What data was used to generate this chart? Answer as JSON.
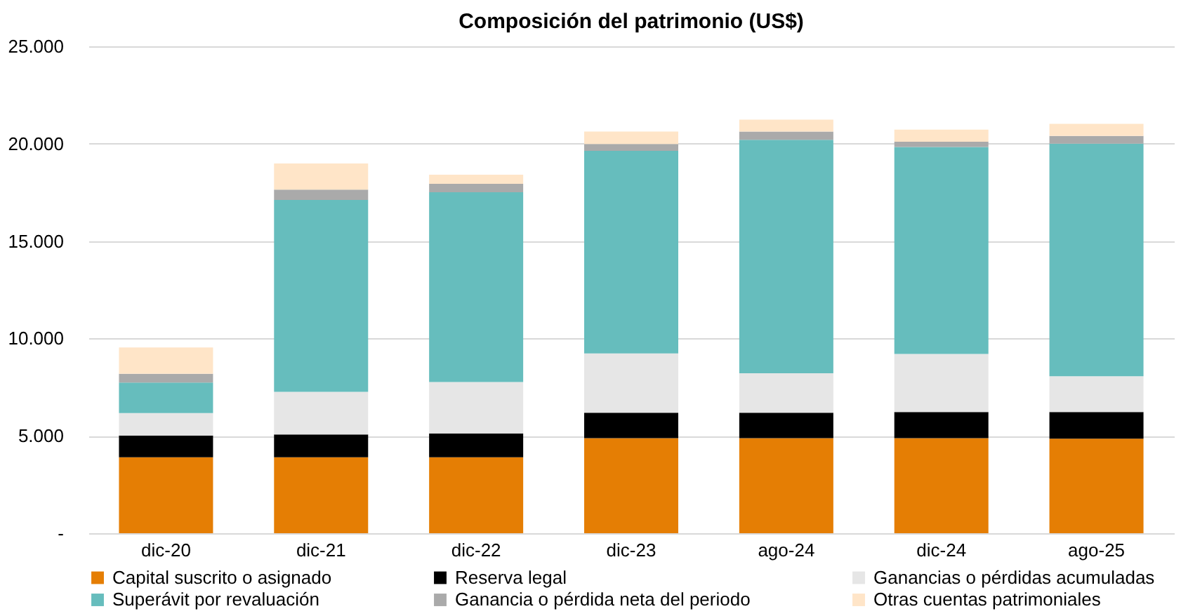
{
  "chart_data": {
    "type": "bar",
    "stacked": true,
    "title": "Composición del patrimonio (US$)",
    "categories": [
      "dic-20",
      "dic-21",
      "dic-22",
      "dic-23",
      "ago-24",
      "dic-24",
      "ago-25"
    ],
    "series": [
      {
        "name": "Capital suscrito o asignado",
        "color": "#e57e04",
        "values": [
          3900,
          3900,
          3900,
          4880,
          4880,
          4880,
          4850
        ]
      },
      {
        "name": "Reserva legal",
        "color": "#000000",
        "values": [
          1120,
          1170,
          1220,
          1310,
          1310,
          1340,
          1370
        ]
      },
      {
        "name": "Ganancias o pérdidas acumuladas",
        "color": "#e6e6e6",
        "values": [
          1150,
          2190,
          2640,
          3040,
          2020,
          2980,
          1840
        ]
      },
      {
        "name": "Superávit por revaluación",
        "color": "#66bdbd",
        "values": [
          1570,
          9850,
          9750,
          10400,
          11990,
          10630,
          11940
        ]
      },
      {
        "name": "Ganancia o pérdida neta del periodo",
        "color": "#aaaaaa",
        "values": [
          450,
          530,
          430,
          350,
          420,
          270,
          400
        ]
      },
      {
        "name": "Otras cuentas patrimoniales",
        "color": "#ffe5c8",
        "values": [
          1350,
          1340,
          470,
          640,
          620,
          620,
          620
        ]
      }
    ],
    "ylim": [
      0,
      25000
    ],
    "yticks": [
      {
        "value": 0,
        "label": "-"
      },
      {
        "value": 5000,
        "label": "5.000"
      },
      {
        "value": 10000,
        "label": "10.000"
      },
      {
        "value": 15000,
        "label": "15.000"
      },
      {
        "value": 20000,
        "label": "20.000"
      },
      {
        "value": 25000,
        "label": "25.000"
      }
    ],
    "grid": "y",
    "legend": "bottom"
  }
}
